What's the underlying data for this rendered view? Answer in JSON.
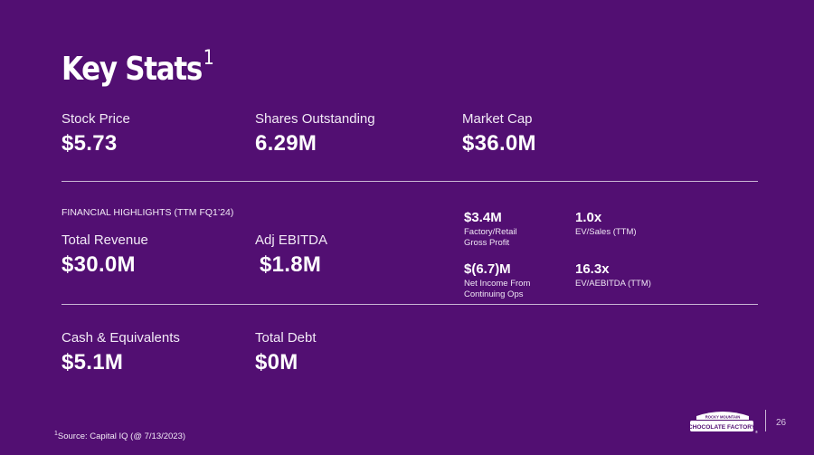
{
  "title": "Key Stats",
  "title_footnote_marker": "1",
  "top_stats": [
    {
      "label": "Stock Price",
      "value": "$5.73"
    },
    {
      "label": "Shares Outstanding",
      "value": "6.29M"
    },
    {
      "label": "Market Cap",
      "value": "$36.0M"
    }
  ],
  "financial_highlights": {
    "heading": "FINANCIAL HIGHLIGHTS (TTM FQ1’24)",
    "stats": [
      {
        "label": "Total Revenue",
        "value": "$30.0M"
      },
      {
        "label": "Adj EBITDA",
        "value": "$1.8M"
      }
    ],
    "metrics": [
      {
        "value": "$3.4M",
        "label_line1": "Factory/Retail",
        "label_line2": "Gross Profit"
      },
      {
        "value": "1.0x",
        "label_line1": "EV/Sales (TTM)",
        "label_line2": ""
      },
      {
        "value": "$(6.7)M",
        "label_line1": "Net Income From",
        "label_line2": "Continuing Ops"
      },
      {
        "value": "16.3x",
        "label_line1": "EV/AEBITDA (TTM)",
        "label_line2": ""
      }
    ]
  },
  "bottom_stats": [
    {
      "label": "Cash & Equivalents",
      "value": "$5.1M"
    },
    {
      "label": "Total Debt",
      "value": "$0M"
    }
  ],
  "footnote": {
    "marker": "1",
    "text": "Source: Capital IQ (@ 7/13/2023)"
  },
  "logo": {
    "top_text": "ROCKY MOUNTAIN",
    "main_text": "CHOCOLATE FACTORY",
    "mark": "®"
  },
  "page_number": "26",
  "colors": {
    "background": "#520f72",
    "text": "#ffffff",
    "rule": "#c9b6d4"
  }
}
